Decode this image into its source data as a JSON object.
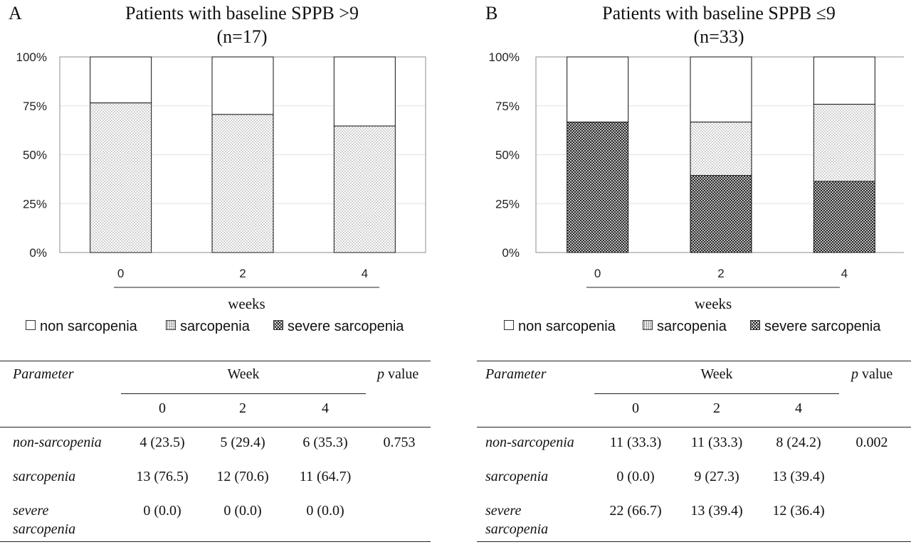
{
  "panels": [
    {
      "letter": "A",
      "title_line1": "Patients with baseline SPPB >9",
      "title_line2": "(n=17)",
      "legend": [
        "non sarcopenia",
        "sarcopenia",
        "severe sarcopenia"
      ],
      "table": {
        "parameter_header": "Parameter",
        "week_header": "Week",
        "p_header": "p value",
        "weeks": [
          "0",
          "2",
          "4"
        ],
        "rows": [
          {
            "label": "non-sarcopenia",
            "values": [
              "4 (23.5)",
              "5 (29.4)",
              "6 (35.3)"
            ],
            "p": "0.753"
          },
          {
            "label": "sarcopenia",
            "values": [
              "13 (76.5)",
              "12 (70.6)",
              "11 (64.7)"
            ],
            "p": ""
          },
          {
            "label_line1": "severe",
            "label_line2": "sarcopenia",
            "values": [
              "0 (0.0)",
              "0 (0.0)",
              "0 (0.0)"
            ],
            "p": ""
          }
        ]
      }
    },
    {
      "letter": "B",
      "title_line1": "Patients with baseline SPPB ≤9",
      "title_line2": "(n=33)",
      "legend": [
        "non sarcopenia",
        "sarcopenia",
        "severe sarcopenia"
      ],
      "table": {
        "parameter_header": "Parameter",
        "week_header": "Week",
        "p_header": "p value",
        "weeks": [
          "0",
          "2",
          "4"
        ],
        "rows": [
          {
            "label": "non-sarcopenia",
            "values": [
              "11 (33.3)",
              "11 (33.3)",
              "8 (24.2)"
            ],
            "p": "0.002"
          },
          {
            "label": "sarcopenia",
            "values": [
              "0 (0.0)",
              "9 (27.3)",
              "13 (39.4)"
            ],
            "p": ""
          },
          {
            "label_line1": "severe",
            "label_line2": "sarcopenia",
            "values": [
              "22 (66.7)",
              "13 (39.4)",
              "12 (36.4)"
            ],
            "p": ""
          }
        ]
      }
    }
  ],
  "chart_data": [
    {
      "type": "bar",
      "stacked": true,
      "percent": true,
      "title": "Patients with baseline SPPB >9 (n=17)",
      "categories": [
        "0",
        "2",
        "4"
      ],
      "xlabel": "weeks",
      "ylabel": "",
      "ylim": [
        0,
        100
      ],
      "yticks": [
        "0%",
        "25%",
        "50%",
        "75%",
        "100%"
      ],
      "grid": true,
      "legend_position": "bottom",
      "series": [
        {
          "name": "severe sarcopenia",
          "pattern": "crosshatch",
          "values": [
            0.0,
            0.0,
            0.0
          ]
        },
        {
          "name": "sarcopenia",
          "pattern": "dots",
          "values": [
            76.5,
            70.6,
            64.7
          ]
        },
        {
          "name": "non sarcopenia",
          "pattern": "white",
          "values": [
            23.5,
            29.4,
            35.3
          ]
        }
      ]
    },
    {
      "type": "bar",
      "stacked": true,
      "percent": true,
      "title": "Patients with baseline SPPB ≤9 (n=33)",
      "categories": [
        "0",
        "2",
        "4"
      ],
      "xlabel": "weeks",
      "ylabel": "",
      "ylim": [
        0,
        100
      ],
      "yticks": [
        "0%",
        "25%",
        "50%",
        "75%",
        "100%"
      ],
      "grid": true,
      "legend_position": "bottom",
      "series": [
        {
          "name": "severe sarcopenia",
          "pattern": "crosshatch",
          "values": [
            66.7,
            39.4,
            36.4
          ]
        },
        {
          "name": "sarcopenia",
          "pattern": "dots",
          "values": [
            0.0,
            27.3,
            39.4
          ]
        },
        {
          "name": "non sarcopenia",
          "pattern": "white",
          "values": [
            33.3,
            33.3,
            24.2
          ]
        }
      ]
    }
  ]
}
